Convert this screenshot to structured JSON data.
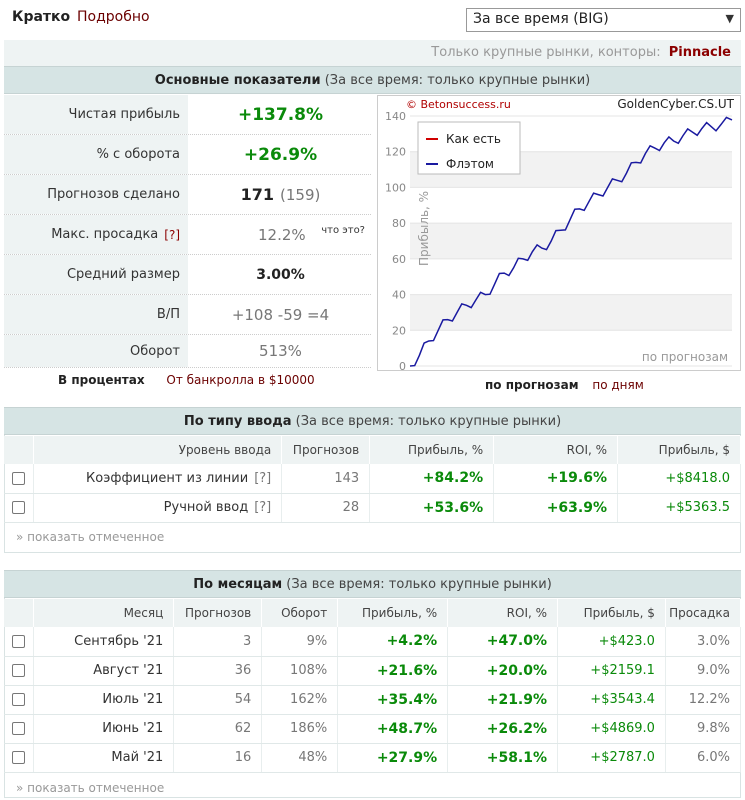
{
  "tabs": {
    "short": "Кратко",
    "detailed": "Подробно"
  },
  "period_select": {
    "value": "За все время (BIG)"
  },
  "subline": {
    "text": "Только крупные рынки, конторы:",
    "bookmaker": "Pinnacle"
  },
  "main_stats": {
    "header_bold": "Основные показатели",
    "header_note": "(За все время: только крупные рынки)",
    "rows": {
      "net_profit": {
        "label": "Чистая прибыль",
        "value": "+137.8%"
      },
      "turnover_pct": {
        "label": "% с оборота",
        "value": "+26.9%"
      },
      "predictions": {
        "label": "Прогнозов сделано",
        "value": "171",
        "value2": "(159)"
      },
      "max_drawdown": {
        "label": "Макс. просадка",
        "qmark": "[?]",
        "value": "12.2%",
        "whatis": "что это?"
      },
      "avg_size": {
        "label": "Средний размер",
        "value": "3.00%"
      },
      "wl": {
        "label": "В/П",
        "value": "+108 -59 =4"
      },
      "turnover": {
        "label": "Оборот",
        "value": "513%"
      }
    },
    "in_percent": "В процентах",
    "from_bankroll": "От банкролла в $10000"
  },
  "chart_links": {
    "by_predictions": "по прогнозам",
    "by_days": "по дням"
  },
  "chart_data": {
    "type": "line",
    "watermark_left": "© Betonsuccess.ru",
    "watermark_right": "GoldenCyber.CS.UT",
    "ylabel": "Прибыль, %",
    "xlabel": "по прогнозам",
    "ylim": [
      0,
      140
    ],
    "yticks": [
      0,
      20,
      40,
      60,
      80,
      100,
      120,
      140
    ],
    "grid": true,
    "legend_position": "top-left",
    "series": [
      {
        "name": "Как есть",
        "color": "#d00000",
        "values": []
      },
      {
        "name": "Флэтом",
        "color": "#1a1aa0",
        "x": [
          0,
          5,
          10,
          15,
          20,
          25,
          30,
          35,
          40,
          45,
          50,
          55,
          60,
          65,
          70,
          75,
          80,
          85,
          90,
          95,
          100,
          105,
          110,
          115,
          120,
          125,
          130,
          135,
          140,
          145,
          150,
          155,
          160,
          165,
          171
        ],
        "values": [
          0,
          6,
          14,
          20,
          26,
          30,
          34,
          37,
          40,
          46,
          52,
          55,
          60,
          64,
          66,
          70,
          76,
          82,
          88,
          92,
          96,
          100,
          104,
          108,
          114,
          119,
          122,
          125,
          126,
          129,
          131,
          133,
          134,
          135,
          137.8
        ]
      }
    ]
  },
  "by_entry_type": {
    "header_bold": "По типу ввода",
    "header_note": "(За все время: только крупные рынки)",
    "columns": [
      "Уровень ввода",
      "Прогнозов",
      "Прибыль, %",
      "ROI, %",
      "Прибыль, $"
    ],
    "rows": [
      {
        "level": "Коэффициент из линии",
        "q": "[?]",
        "count": "143",
        "profit_pct": "+84.2%",
        "roi": "+19.6%",
        "profit_usd": "+$8418.0"
      },
      {
        "level": "Ручной ввод",
        "q": "[?]",
        "count": "28",
        "profit_pct": "+53.6%",
        "roi": "+63.9%",
        "profit_usd": "+$5363.5"
      }
    ],
    "show_marked": "» показать отмеченное"
  },
  "by_month": {
    "header_bold": "По месяцам",
    "header_note": "(За все время: только крупные рынки)",
    "columns": [
      "Месяц",
      "Прогнозов",
      "Оборот",
      "Прибыль, %",
      "ROI, %",
      "Прибыль, $",
      "Просадка"
    ],
    "rows": [
      {
        "month": "Сентябрь '21",
        "count": "3",
        "turnover": "9%",
        "profit_pct": "+4.2%",
        "roi": "+47.0%",
        "profit_usd": "+$423.0",
        "drawdown": "3.0%"
      },
      {
        "month": "Август '21",
        "count": "36",
        "turnover": "108%",
        "profit_pct": "+21.6%",
        "roi": "+20.0%",
        "profit_usd": "+$2159.1",
        "drawdown": "9.0%"
      },
      {
        "month": "Июль '21",
        "count": "54",
        "turnover": "162%",
        "profit_pct": "+35.4%",
        "roi": "+21.9%",
        "profit_usd": "+$3543.4",
        "drawdown": "12.2%"
      },
      {
        "month": "Июнь '21",
        "count": "62",
        "turnover": "186%",
        "profit_pct": "+48.7%",
        "roi": "+26.2%",
        "profit_usd": "+$4869.0",
        "drawdown": "9.8%"
      },
      {
        "month": "Май '21",
        "count": "16",
        "turnover": "48%",
        "profit_pct": "+27.9%",
        "roi": "+58.1%",
        "profit_usd": "+$2787.0",
        "drawdown": "6.0%"
      }
    ],
    "show_marked": "» показать отмеченное"
  }
}
